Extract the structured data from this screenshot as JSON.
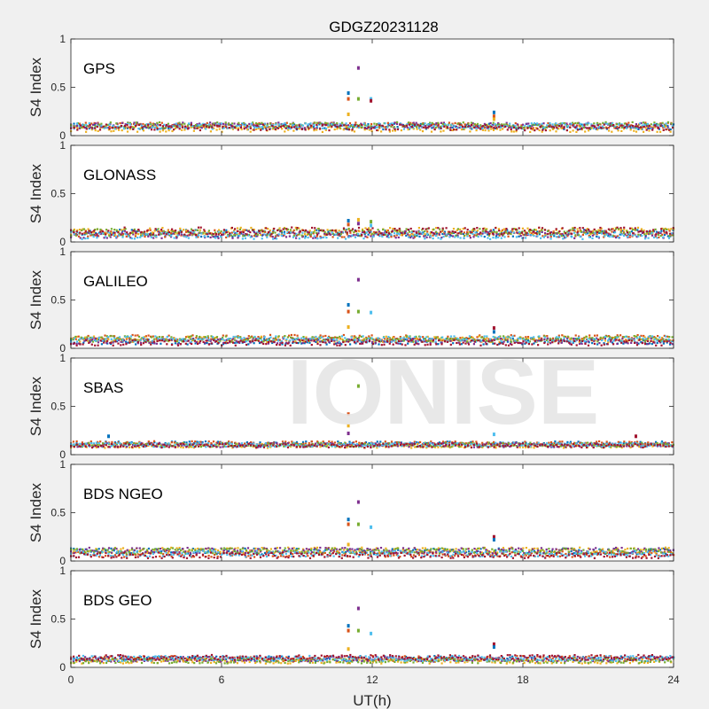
{
  "figure": {
    "title": "GDGZ20231128",
    "xlabel": "UT(h)",
    "watermark": "IONISE"
  },
  "colors": {
    "background": "#f0f0f0",
    "axes_face": "#ffffff",
    "axes_edge": "#262626",
    "watermark": "#e6e6e6",
    "series": [
      "#0072BD",
      "#D95319",
      "#EDB120",
      "#7E2F8E",
      "#77AC30",
      "#4DBEEE",
      "#A2142F"
    ]
  },
  "chart_data": [
    {
      "type": "scatter",
      "name": "GPS",
      "ylabel": "S4 Index",
      "xlim": [
        0,
        24
      ],
      "ylim": [
        0,
        1
      ],
      "xticks": [
        0,
        6,
        12,
        18,
        24
      ],
      "yticks": [
        0,
        0.5,
        1
      ],
      "ytick_labels": [
        "0",
        "0.5",
        "1"
      ],
      "show_xtick_labels": false,
      "baseline_range": [
        0.03,
        0.14
      ],
      "spikes": [
        [
          11.05,
          0.44
        ],
        [
          11.05,
          0.38
        ],
        [
          11.05,
          0.22
        ],
        [
          11.45,
          0.7
        ],
        [
          11.45,
          0.38
        ],
        [
          11.95,
          0.38
        ],
        [
          11.95,
          0.36
        ],
        [
          16.85,
          0.24
        ],
        [
          16.85,
          0.2
        ],
        [
          16.85,
          0.17
        ]
      ]
    },
    {
      "type": "scatter",
      "name": "GLONASS",
      "ylabel": "S4 Index",
      "xlim": [
        0,
        24
      ],
      "ylim": [
        0,
        1
      ],
      "xticks": [
        0,
        6,
        12,
        18,
        24
      ],
      "yticks": [
        0,
        0.5,
        1
      ],
      "ytick_labels": [
        "0",
        "0.5",
        "1"
      ],
      "show_xtick_labels": false,
      "baseline_range": [
        0.03,
        0.17
      ],
      "spikes": [
        [
          11.05,
          0.22
        ],
        [
          11.05,
          0.18
        ],
        [
          11.45,
          0.23
        ],
        [
          11.45,
          0.19
        ],
        [
          11.95,
          0.21
        ],
        [
          11.95,
          0.17
        ]
      ]
    },
    {
      "type": "scatter",
      "name": "GALILEO",
      "ylabel": "S4 Index",
      "xlim": [
        0,
        24
      ],
      "ylim": [
        0,
        1
      ],
      "xticks": [
        0,
        6,
        12,
        18,
        24
      ],
      "yticks": [
        0,
        0.5,
        1
      ],
      "ytick_labels": [
        "0",
        "0.5",
        "1"
      ],
      "show_xtick_labels": false,
      "baseline_range": [
        0.03,
        0.14
      ],
      "spikes": [
        [
          11.05,
          0.45
        ],
        [
          11.05,
          0.38
        ],
        [
          11.05,
          0.22
        ],
        [
          11.45,
          0.71
        ],
        [
          11.45,
          0.38
        ],
        [
          11.95,
          0.37
        ],
        [
          16.85,
          0.21
        ],
        [
          16.85,
          0.17
        ]
      ]
    },
    {
      "type": "scatter",
      "name": "SBAS",
      "ylabel": "S4 Index",
      "xlim": [
        0,
        24
      ],
      "ylim": [
        0,
        1
      ],
      "xticks": [
        0,
        6,
        12,
        18,
        24
      ],
      "yticks": [
        0,
        0.5,
        1
      ],
      "ytick_labels": [
        "0",
        "0.5",
        "1"
      ],
      "show_xtick_labels": false,
      "baseline_range": [
        0.06,
        0.14
      ],
      "spikes": [
        [
          1.5,
          0.19
        ],
        [
          11.05,
          0.42
        ],
        [
          11.05,
          0.3
        ],
        [
          11.05,
          0.22
        ],
        [
          11.45,
          0.71
        ],
        [
          16.85,
          0.21
        ],
        [
          22.5,
          0.19
        ]
      ]
    },
    {
      "type": "scatter",
      "name": "BDS NGEO",
      "ylabel": "S4 Index",
      "xlim": [
        0,
        24
      ],
      "ylim": [
        0,
        1
      ],
      "xticks": [
        0,
        6,
        12,
        18,
        24
      ],
      "yticks": [
        0,
        0.5,
        1
      ],
      "ytick_labels": [
        "0",
        "0.5",
        "1"
      ],
      "show_xtick_labels": false,
      "baseline_range": [
        0.03,
        0.14
      ],
      "spikes": [
        [
          11.05,
          0.43
        ],
        [
          11.05,
          0.38
        ],
        [
          11.05,
          0.17
        ],
        [
          11.45,
          0.61
        ],
        [
          11.45,
          0.38
        ],
        [
          11.95,
          0.35
        ],
        [
          16.85,
          0.25
        ],
        [
          16.85,
          0.22
        ]
      ]
    },
    {
      "type": "scatter",
      "name": "BDS GEO",
      "ylabel": "S4 Index",
      "xlim": [
        0,
        24
      ],
      "ylim": [
        0,
        1
      ],
      "xticks": [
        0,
        6,
        12,
        18,
        24
      ],
      "yticks": [
        0,
        0.5,
        1
      ],
      "ytick_labels": [
        "0",
        "0.5",
        "1"
      ],
      "show_xtick_labels": true,
      "xtick_labels": [
        "0",
        "6",
        "12",
        "18",
        "24"
      ],
      "baseline_range": [
        0.04,
        0.14
      ],
      "spikes": [
        [
          11.05,
          0.43
        ],
        [
          11.05,
          0.38
        ],
        [
          11.05,
          0.19
        ],
        [
          11.45,
          0.61
        ],
        [
          11.45,
          0.38
        ],
        [
          11.95,
          0.35
        ],
        [
          16.85,
          0.24
        ],
        [
          16.85,
          0.21
        ]
      ]
    }
  ]
}
